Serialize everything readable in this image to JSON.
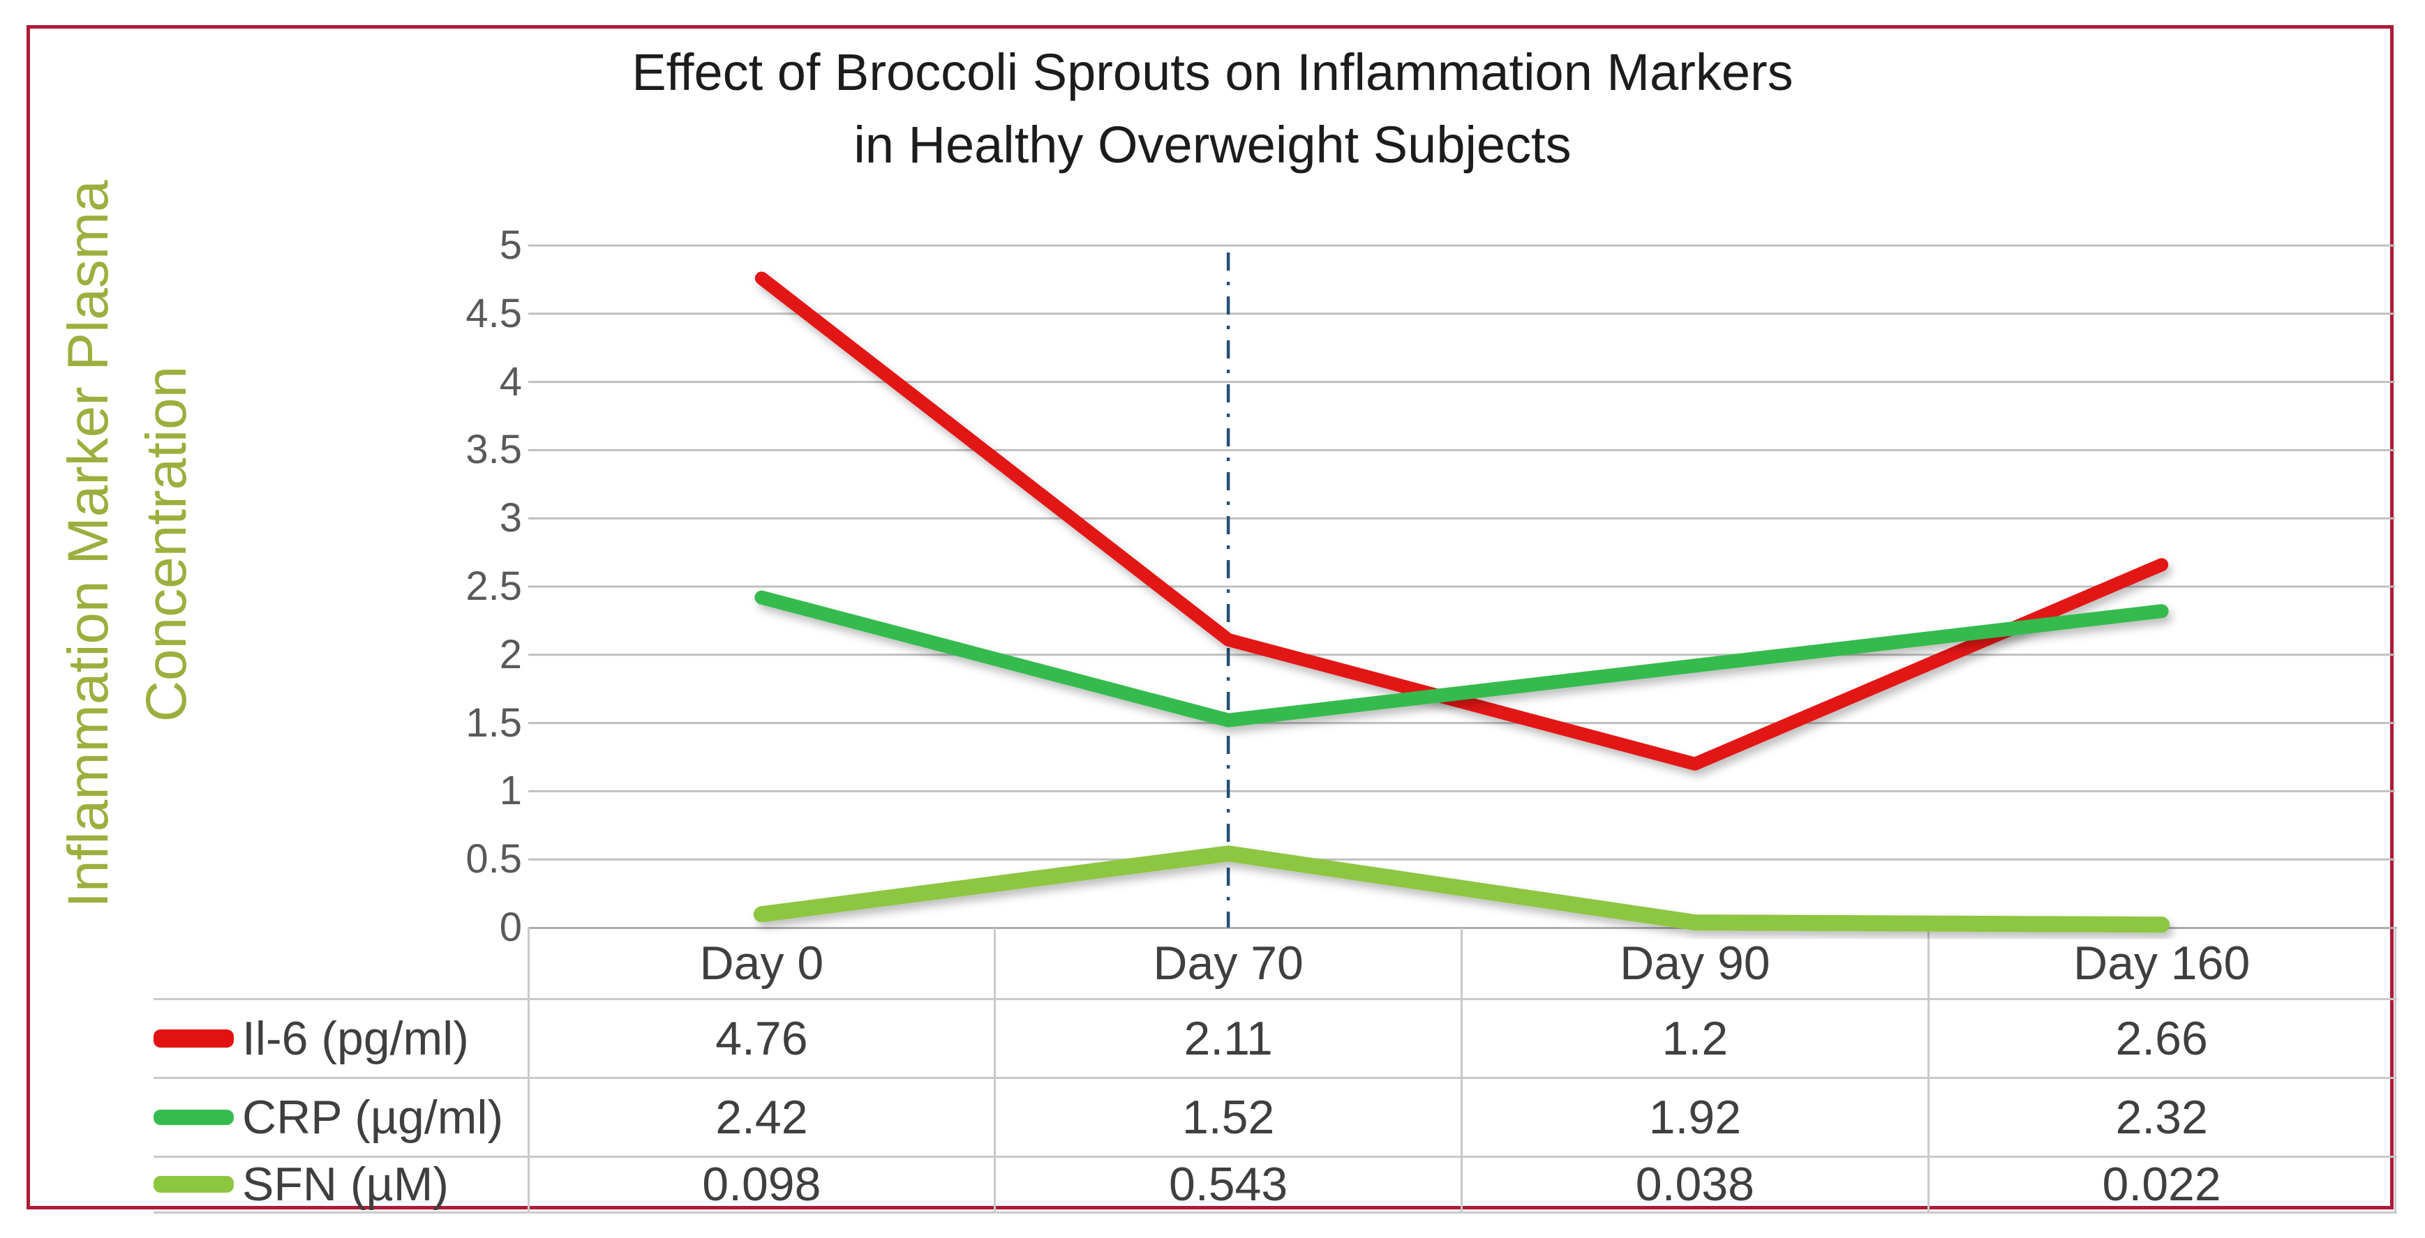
{
  "page": {
    "background": "#FFFFFF",
    "border_color": "#AE1A38"
  },
  "title": {
    "line1": "Effect of Broccoli Sprouts on Inflammation Markers",
    "line2": "in Healthy Overweight Subjects"
  },
  "y_axis": {
    "label_line1": "Inflammation Marker Plasma",
    "label_line2": "Concentration",
    "label_color": "#9CAF3E",
    "tick_labels_top_to_bottom": [
      "5",
      "4.5",
      "4",
      "3.5",
      "3",
      "2.5",
      "2",
      "1.5",
      "1",
      "0.5",
      "0"
    ]
  },
  "x_axis": {
    "categories": [
      "Day 0",
      "Day 70",
      "Day 90",
      "Day 160"
    ]
  },
  "chart_data": {
    "type": "line",
    "title": "Effect of Broccoli Sprouts on Inflammation Markers in Healthy Overweight Subjects",
    "ylabel": "Inflammation Marker Plasma Concentration",
    "xlabel": "",
    "ylim": [
      0,
      5
    ],
    "ytick_step": 0.5,
    "grid": "horizontal",
    "legend_position": "table-left",
    "categories": [
      "Day 0",
      "Day 70",
      "Day 90",
      "Day 160"
    ],
    "series": [
      {
        "name": "Il-6 (pg/ml)",
        "values": [
          4.76,
          2.11,
          1.2,
          2.66
        ],
        "display_values": [
          "4.76",
          "2.11",
          "1.2",
          "2.66"
        ],
        "color": "#E31212"
      },
      {
        "name": "CRP (µg/ml)",
        "values": [
          2.42,
          1.52,
          1.92,
          2.32
        ],
        "display_values": [
          "2.42",
          "1.52",
          "1.92",
          "2.32"
        ],
        "color": "#35BB4E"
      },
      {
        "name": "SFN (µM)",
        "values": [
          0.098,
          0.543,
          0.038,
          0.022
        ],
        "display_values": [
          "0.098",
          "0.543",
          "0.038",
          "0.022"
        ],
        "color": "#8DC63F"
      }
    ],
    "annotations": [
      {
        "type": "vline",
        "at_category": "Day 70",
        "style": "dash-dot",
        "color": "#254E77"
      }
    ]
  },
  "colors": {
    "gridline": "#BFBFBF",
    "axis_line": "#ADADAD",
    "table_border": "#C9C9C9",
    "tick_text": "#595959",
    "table_text": "#3F3F3F",
    "title_text": "#1C1C1C"
  }
}
